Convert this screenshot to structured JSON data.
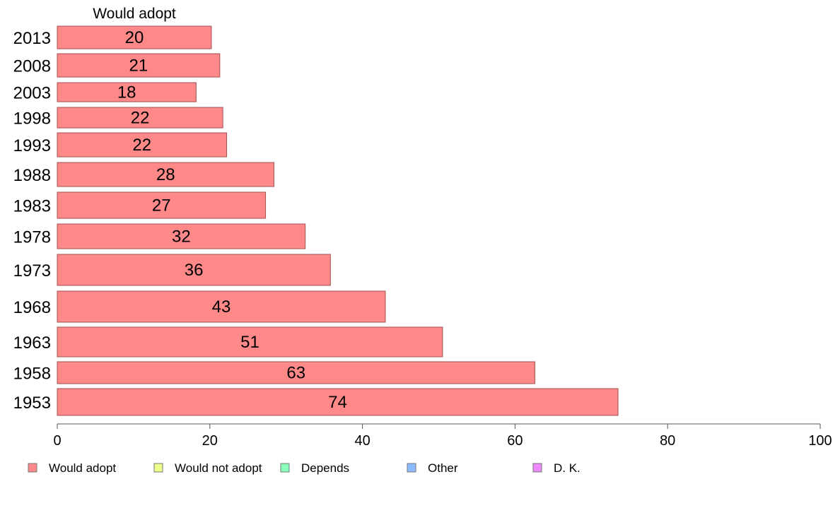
{
  "chart_data": {
    "type": "bar",
    "orientation": "horizontal",
    "series_title": "Would adopt",
    "categories": [
      "2013",
      "2008",
      "2003",
      "1998",
      "1993",
      "1988",
      "1983",
      "1978",
      "1973",
      "1968",
      "1963",
      "1958",
      "1953"
    ],
    "values": [
      20,
      21,
      18,
      22,
      22,
      28,
      27,
      32,
      36,
      43,
      51,
      63,
      74
    ],
    "value_labels": [
      "20",
      "21",
      "18",
      "22",
      "22",
      "28",
      "27",
      "32",
      "36",
      "43",
      "51",
      "63",
      "74"
    ],
    "exact_values": [
      20.2,
      21.3,
      18.2,
      21.7,
      22.2,
      28.4,
      27.3,
      32.5,
      35.8,
      43.0,
      50.5,
      62.6,
      73.5
    ],
    "xlim": [
      0,
      100
    ],
    "xticks": [
      0,
      20,
      40,
      60,
      80,
      100
    ],
    "grid": false,
    "legend_position": "bottom",
    "legend": [
      {
        "label": "Would adopt",
        "color": "#ff8888"
      },
      {
        "label": "Would not adopt",
        "color": "#eeff88"
      },
      {
        "label": "Depends",
        "color": "#88ffbb"
      },
      {
        "label": "Other",
        "color": "#88bbff"
      },
      {
        "label": "D. K.",
        "color": "#ee88ff"
      }
    ],
    "bar_color": "#ff8888",
    "bar_stroke": "#a05050"
  }
}
